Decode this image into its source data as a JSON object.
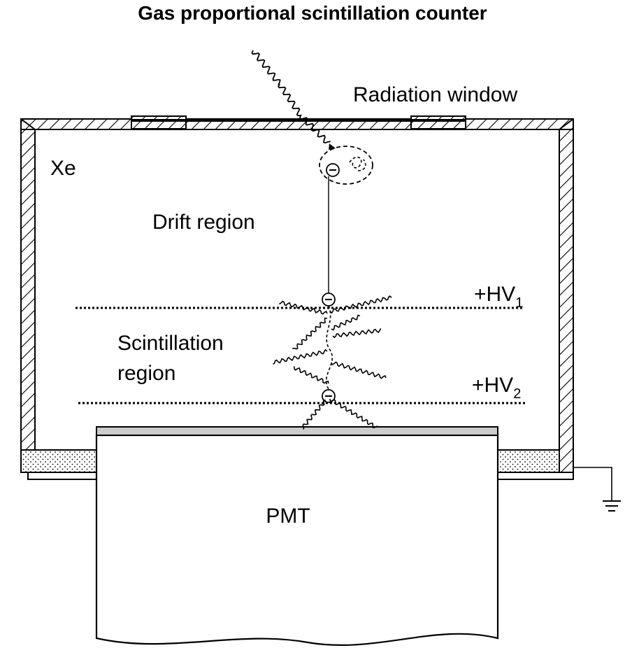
{
  "title": "Gas proportional scintillation counter",
  "labels": {
    "radiation_window": "Radiation window",
    "gas": "Xe",
    "drift_region": "Drift region",
    "scintillation_region_line1": "Scintillation",
    "scintillation_region_line2": "region",
    "hv1_main": "+HV",
    "hv1_sub": "1",
    "hv2_main": "+HV",
    "hv2_sub": "2",
    "pmt": "PMT"
  },
  "symbols": {
    "electron": "⊖"
  },
  "icons": {
    "ground": "ground-symbol-icon",
    "photon": "wavy-photon-icon",
    "electron": "electron-circle-icon"
  },
  "colors": {
    "ink": "#000000",
    "background": "#ffffff",
    "pmt_window": "#cccccc"
  }
}
